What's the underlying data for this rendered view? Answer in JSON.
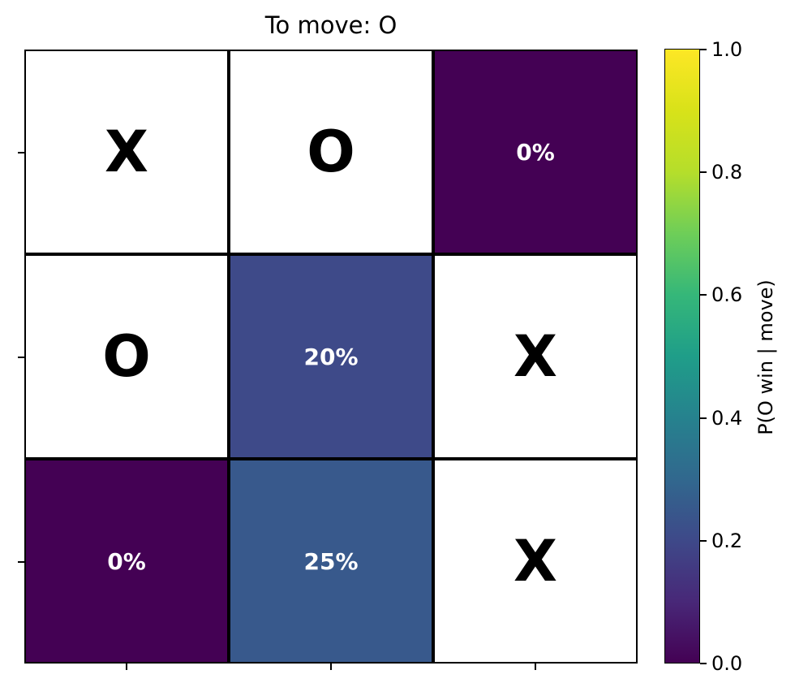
{
  "title": "To move: O",
  "board": {
    "cells": [
      {
        "mark": "X",
        "prob": null,
        "label": ""
      },
      {
        "mark": "O",
        "prob": null,
        "label": ""
      },
      {
        "mark": "",
        "prob": 0.0,
        "label": "0%"
      },
      {
        "mark": "O",
        "prob": null,
        "label": ""
      },
      {
        "mark": "",
        "prob": 0.2,
        "label": "20%"
      },
      {
        "mark": "X",
        "prob": null,
        "label": ""
      },
      {
        "mark": "",
        "prob": 0.0,
        "label": "0%"
      },
      {
        "mark": "",
        "prob": 0.25,
        "label": "25%"
      },
      {
        "mark": "X",
        "prob": null,
        "label": ""
      }
    ]
  },
  "colorbar": {
    "label": "P(O win | move)",
    "ticks": [
      "0.0",
      "0.2",
      "0.4",
      "0.6",
      "0.8",
      "1.0"
    ],
    "colormap": "viridis",
    "range": [
      0,
      1
    ]
  }
}
